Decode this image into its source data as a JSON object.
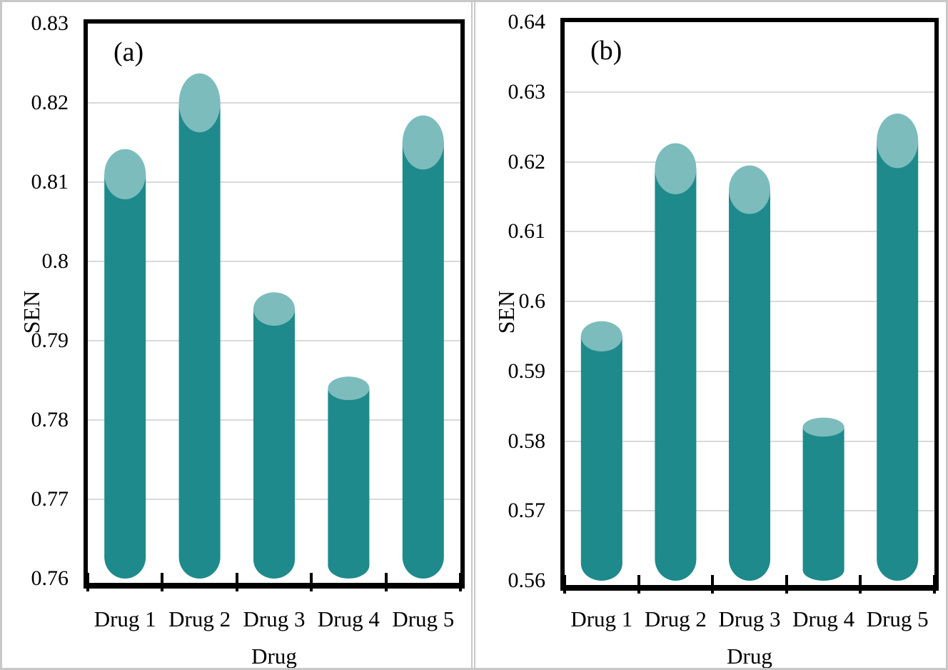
{
  "figure_title": "",
  "colors": {
    "bar_body": "#1e8a8c",
    "bar_cap": "#7dbcbc",
    "gridline": "#d9d9d9",
    "frame": "#000000",
    "panel_border": "#c8c8c8",
    "background": "#ffffff"
  },
  "chart_data": [
    {
      "type": "bar",
      "style": "cylinder-3d",
      "panel_label": "(a)",
      "categories": [
        "Drug 1",
        "Drug 2",
        "Drug 3",
        "Drug 4",
        "Drug 5"
      ],
      "values": [
        0.811,
        0.82,
        0.794,
        0.784,
        0.815
      ],
      "xlabel": "Drug",
      "ylabel": "SEN",
      "ylim": [
        0.76,
        0.83
      ],
      "ytick_step": 0.01,
      "ytick_labels": [
        "0.83",
        "0.82",
        "0.81",
        "0.8",
        "0.79",
        "0.78",
        "0.77",
        "0.76"
      ],
      "grid": true,
      "legend": false
    },
    {
      "type": "bar",
      "style": "cylinder-3d",
      "panel_label": "(b)",
      "categories": [
        "Drug 1",
        "Drug 2",
        "Drug 3",
        "Drug 4",
        "Drug 5"
      ],
      "values": [
        0.595,
        0.619,
        0.616,
        0.582,
        0.623
      ],
      "xlabel": "Drug",
      "ylabel": "SEN",
      "ylim": [
        0.56,
        0.64
      ],
      "ytick_step": 0.01,
      "ytick_labels": [
        "0.64",
        "0.63",
        "0.62",
        "0.61",
        "0.6",
        "0.59",
        "0.58",
        "0.57",
        "0.56"
      ],
      "grid": true,
      "legend": false
    }
  ]
}
